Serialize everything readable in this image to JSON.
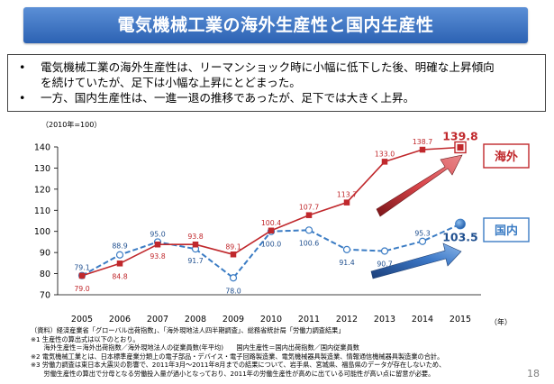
{
  "title": "電気機械工業の海外生産性と国内生産性",
  "bullets": [
    {
      "marker": "•",
      "line1": "電気機械工業の海外生産性は、リーマンショック時に小幅に低下した後、明確な上昇傾向",
      "line2": "を続けていたが、足下は小幅な上昇にとどまった。"
    },
    {
      "marker": "•",
      "line1": "一方、国内生産性は、一進一退の推移であったが、足下では大きく上昇。",
      "line2": ""
    }
  ],
  "chart_data": {
    "type": "line",
    "unit_label": "（2010年=100）",
    "x_unit": "（年）",
    "categories": [
      "2005",
      "2006",
      "2007",
      "2008",
      "2009",
      "2010",
      "2011",
      "2012",
      "2013",
      "2014",
      "2015"
    ],
    "ylim": [
      70,
      140
    ],
    "yticks": [
      70,
      80,
      90,
      100,
      110,
      120,
      130,
      140
    ],
    "grid": false,
    "series": [
      {
        "name": "海外",
        "color": "#c0282c",
        "style": "solid",
        "values": [
          79.0,
          84.8,
          93.8,
          93.8,
          89.1,
          100.4,
          107.7,
          113.7,
          133.0,
          138.7,
          139.8
        ],
        "labels": [
          "79.0",
          "84.8",
          "93.8",
          "93.8",
          "89.1",
          "100.4",
          "107.7",
          "113.7",
          "133.0",
          "138.7",
          "139.8"
        ]
      },
      {
        "name": "国内",
        "color": "#3b7cc4",
        "style": "dashed",
        "values": [
          79.1,
          88.9,
          95.0,
          91.7,
          78.0,
          100.0,
          100.6,
          91.4,
          90.7,
          95.3,
          103.5
        ],
        "labels": [
          "79.1",
          "88.9",
          "95.0",
          "91.7",
          "78.0",
          "100.0",
          "100.6",
          "91.4",
          "90.7",
          "95.3",
          "103.5"
        ]
      }
    ]
  },
  "notes": [
    "（資料）経済産業省「グローバル出荷指数」、「海外現地法人四半期調査」、総務省統計局「労働力調査結果」",
    "※1 生産性の算出式は以下のとおり。",
    "　　海外生産性＝海外出荷指数／海外現地法人の従業員数(年平均)　　国内生産性＝国内出荷指数／国内従業員数",
    "※2 電気機械工業とは、日本標準産業分類上の電子部品・デバイス・電子回路製造業、電気機械器具製造業、情報通信機械器具製造業の合計。",
    "※3 労働力調査は東日本大震災の影響で、2011年3月〜2011年8月までの結果について、岩手県、宮城県、福島県のデータが存在しないため、",
    "　　労働生産性の算出で分母となる労働投入量が過小となっており、2011年の労働生産性が高めに出ている可能性が高い点に留意が必要。"
  ],
  "page_number": "18"
}
